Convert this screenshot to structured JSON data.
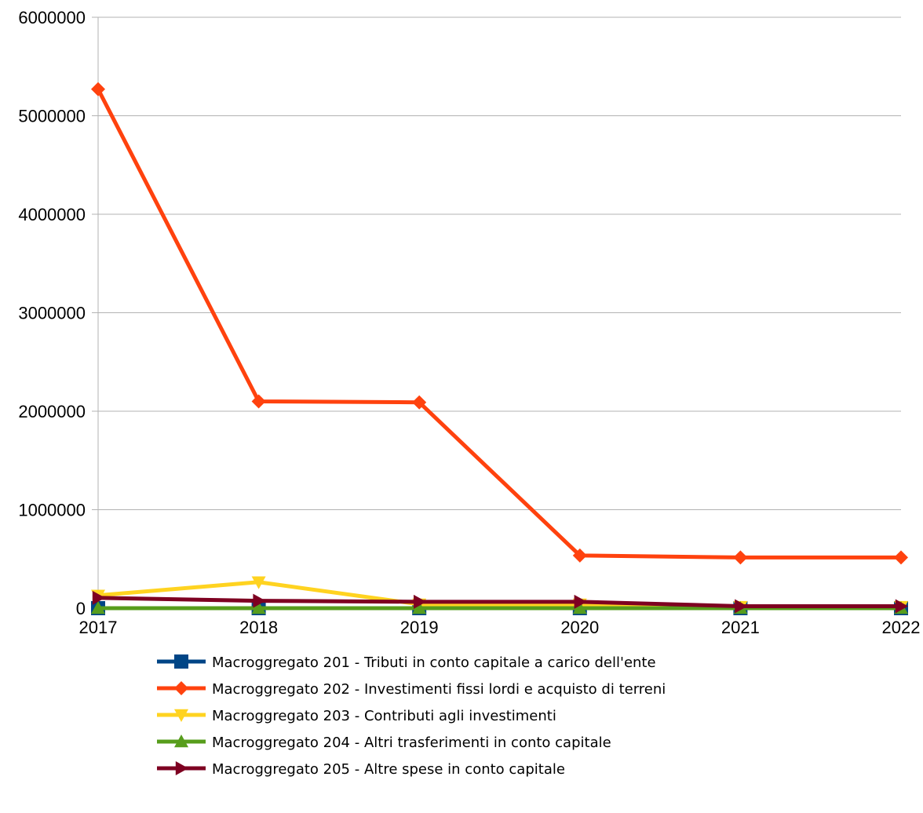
{
  "chart_data": {
    "type": "line",
    "title": "",
    "xlabel": "",
    "ylabel": "",
    "categories": [
      "2017",
      "2018",
      "2019",
      "2020",
      "2021",
      "2022"
    ],
    "ylim": [
      0,
      6000000
    ],
    "yticks": [
      0,
      1000000,
      2000000,
      3000000,
      4000000,
      5000000,
      6000000
    ],
    "ytick_labels": [
      "0",
      "1000000",
      "2000000",
      "3000000",
      "4000000",
      "5000000",
      "6000000"
    ],
    "grid": "horizontal",
    "legend_position": "bottom",
    "series": [
      {
        "name": "Macroggregato 201 - Tributi in conto capitale a carico dell'ente",
        "color": "#004586",
        "marker": "square",
        "values": [
          0,
          0,
          0,
          0,
          0,
          0
        ]
      },
      {
        "name": "Macroggregato 202 - Investimenti fissi lordi e acquisto di terreni",
        "color": "#ff420e",
        "marker": "diamond",
        "values": [
          5270000,
          2100000,
          2090000,
          535000,
          515000,
          515000
        ]
      },
      {
        "name": "Macroggregato 203 - Contributi agli investimenti",
        "color": "#ffd320",
        "marker": "triangle-down",
        "values": [
          130000,
          265000,
          40000,
          40000,
          15000,
          15000
        ]
      },
      {
        "name": "Macroggregato 204 - Altri trasferimenti in conto capitale",
        "color": "#579d1c",
        "marker": "triangle-up",
        "values": [
          0,
          0,
          0,
          0,
          0,
          0
        ]
      },
      {
        "name": "Macroggregato 205 - Altre spese in conto capitale",
        "color": "#7e0021",
        "marker": "triangle-right",
        "values": [
          105000,
          75000,
          65000,
          65000,
          20000,
          20000
        ]
      }
    ]
  }
}
